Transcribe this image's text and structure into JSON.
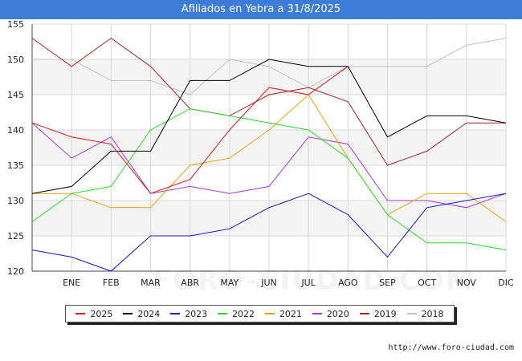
{
  "chart_data": {
    "type": "line",
    "title": "Afiliados en Yebra a 31/8/2025",
    "categories": [
      "",
      "ENE",
      "FEB",
      "MAR",
      "ABR",
      "MAY",
      "JUN",
      "JUL",
      "AGO",
      "SEP",
      "OCT",
      "NOV",
      "DIC"
    ],
    "ylim": [
      120,
      155
    ],
    "yticks": [
      120,
      125,
      130,
      135,
      140,
      145,
      150,
      155
    ],
    "series": [
      {
        "name": "2025",
        "color": "#dd1111",
        "values": [
          141,
          139,
          138,
          131,
          133,
          140,
          146,
          145,
          149,
          null,
          null,
          null,
          null
        ]
      },
      {
        "name": "2024",
        "color": "#000000",
        "values": [
          131,
          132,
          137,
          137,
          147,
          147,
          150,
          149,
          149,
          139,
          142,
          142,
          141
        ]
      },
      {
        "name": "2023",
        "color": "#1111dd",
        "values": [
          123,
          122,
          120,
          125,
          125,
          126,
          129,
          131,
          128,
          122,
          129,
          130,
          131
        ]
      },
      {
        "name": "2022",
        "color": "#22dd22",
        "values": [
          127,
          131,
          132,
          140,
          143,
          142,
          141,
          140,
          136,
          128,
          124,
          124,
          123
        ]
      },
      {
        "name": "2021",
        "color": "#f0a000",
        "values": [
          131,
          131,
          129,
          129,
          135,
          136,
          140,
          145,
          136,
          128,
          131,
          131,
          127
        ]
      },
      {
        "name": "2020",
        "color": "#aa33dd",
        "values": [
          141,
          136,
          139,
          131,
          132,
          131,
          132,
          139,
          138,
          130,
          130,
          129,
          131
        ]
      },
      {
        "name": "2019",
        "color": "#aa2222",
        "values": [
          153,
          149,
          153,
          149,
          143,
          142,
          145,
          146,
          144,
          135,
          137,
          141,
          141
        ]
      },
      {
        "name": "2018",
        "color": "#c0c0c0",
        "values": [
          150,
          150,
          147,
          147,
          145,
          150,
          149,
          146,
          149,
          149,
          149,
          152,
          153
        ]
      }
    ],
    "grid": true,
    "legend": "bottom"
  },
  "watermark": "FORO-CIUDAD.COM",
  "source": "http://www.foro-ciudad.com"
}
